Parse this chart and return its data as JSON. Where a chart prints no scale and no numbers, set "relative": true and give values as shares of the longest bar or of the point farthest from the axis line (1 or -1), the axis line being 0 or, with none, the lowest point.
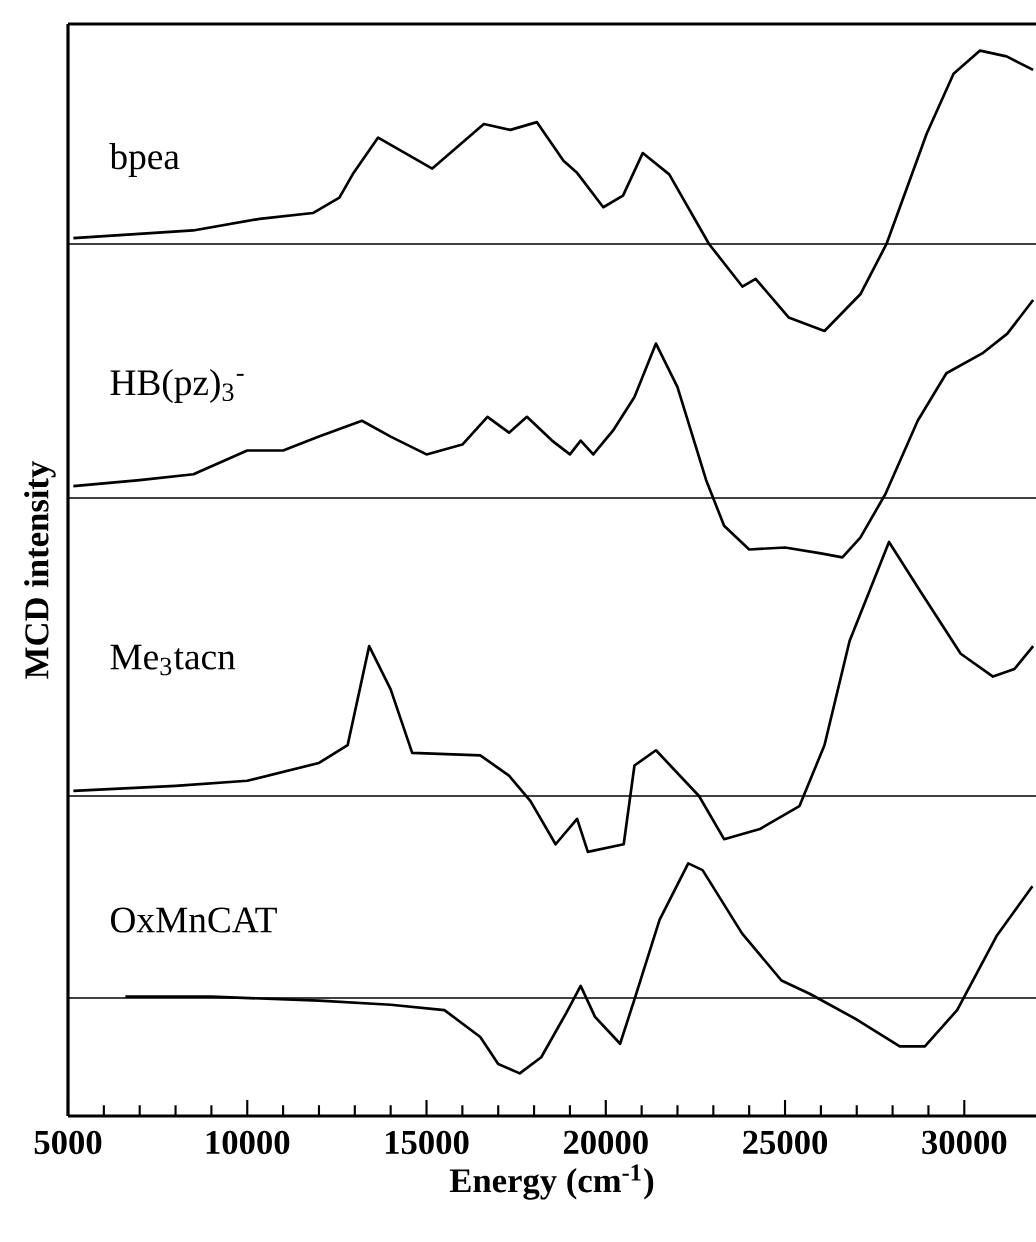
{
  "chart_data": [
    {
      "type": "line",
      "relative": true,
      "xlim": [
        5000,
        32000
      ],
      "tick_labels": false,
      "ref_lines": [
        {
          "axis": "y",
          "value": 0
        }
      ],
      "series": [
        {
          "name": "bpea",
          "color": "#000000",
          "x": [
            5150,
            8490,
            10345,
            11830,
            12570,
            12940,
            13650,
            15160,
            16600,
            17340,
            18080,
            18820,
            19190,
            19930,
            20480,
            21030,
            21770,
            22880,
            23810,
            24180,
            25100,
            26100,
            27100,
            27830,
            28950,
            29700,
            30440,
            31180,
            31920
          ],
          "values": [
            0.03,
            0.07,
            0.13,
            0.16,
            0.24,
            0.36,
            0.55,
            0.39,
            0.62,
            0.59,
            0.63,
            0.43,
            0.37,
            0.19,
            0.25,
            0.47,
            0.36,
            0,
            -0.22,
            -0.18,
            -0.38,
            -0.45,
            -0.26,
            0,
            0.57,
            0.88,
            1,
            0.97,
            0.9
          ]
        }
      ]
    },
    {
      "type": "line",
      "relative": true,
      "xlim": [
        5000,
        32000
      ],
      "tick_labels": false,
      "ref_lines": [
        {
          "axis": "y",
          "value": 0
        }
      ],
      "series": [
        {
          "name": "HB(pz)$_{3}$$^{-}$",
          "color": "#000000",
          "x": [
            5150,
            7000,
            8500,
            10000,
            11000,
            12000,
            13200,
            14000,
            15000,
            16000,
            16700,
            17300,
            17800,
            18500,
            19000,
            19300,
            19650,
            20200,
            20800,
            21400,
            22000,
            22800,
            23300,
            24000,
            25000,
            26000,
            26600,
            27100,
            27800,
            28700,
            29500,
            30500,
            31200,
            31920
          ],
          "values": [
            0.06,
            0.09,
            0.12,
            0.24,
            0.24,
            0.31,
            0.39,
            0.31,
            0.22,
            0.27,
            0.41,
            0.33,
            0.41,
            0.29,
            0.22,
            0.29,
            0.22,
            0.34,
            0.51,
            0.78,
            0.56,
            0.09,
            -0.14,
            -0.26,
            -0.25,
            -0.28,
            -0.3,
            -0.2,
            0.02,
            0.39,
            0.63,
            0.73,
            0.83,
            1
          ]
        }
      ]
    },
    {
      "type": "line",
      "relative": true,
      "xlim": [
        5000,
        32000
      ],
      "tick_labels": false,
      "ref_lines": [
        {
          "axis": "y",
          "value": 0
        }
      ],
      "series": [
        {
          "name": "Me$_{3}$tacn",
          "color": "#000000",
          "x": [
            5150,
            8000,
            10000,
            12000,
            12800,
            13400,
            14000,
            14600,
            16500,
            17300,
            17900,
            18600,
            19200,
            19500,
            20500,
            20800,
            21400,
            22600,
            23300,
            24300,
            25400,
            26100,
            26800,
            27900,
            28800,
            29900,
            30800,
            31400,
            31920
          ],
          "values": [
            0.02,
            0.04,
            0.06,
            0.13,
            0.2,
            0.59,
            0.42,
            0.17,
            0.16,
            0.08,
            -0.02,
            -0.19,
            -0.09,
            -0.22,
            -0.19,
            0.12,
            0.18,
            0,
            -0.17,
            -0.13,
            -0.04,
            0.2,
            0.61,
            1,
            0.8,
            0.56,
            0.47,
            0.5,
            0.59
          ]
        }
      ]
    },
    {
      "type": "line",
      "relative": true,
      "xlim": [
        5000,
        32000
      ],
      "tick_labels": "x",
      "xticks": [
        5000,
        10000,
        15000,
        20000,
        25000,
        30000
      ],
      "xlabel": "Energy (cm$^{-1}$)",
      "ylabel": "MCD intensity",
      "ref_lines": [
        {
          "axis": "y",
          "value": 0
        }
      ],
      "series": [
        {
          "name": "OxMnCAT",
          "color": "#000000",
          "x": [
            6600,
            9000,
            12000,
            14000,
            15500,
            16500,
            17000,
            17600,
            18200,
            18900,
            19300,
            19700,
            20400,
            20800,
            21500,
            22300,
            22700,
            23800,
            24900,
            25700,
            27000,
            28200,
            28900,
            29800,
            30900,
            31900
          ],
          "values": [
            0.01,
            0.01,
            -0.02,
            -0.05,
            -0.09,
            -0.29,
            -0.49,
            -0.56,
            -0.44,
            -0.11,
            0.09,
            -0.14,
            -0.34,
            -0.01,
            0.58,
            1,
            0.95,
            0.48,
            0.13,
            0.03,
            -0.16,
            -0.36,
            -0.36,
            -0.09,
            0.46,
            0.83
          ]
        }
      ]
    }
  ]
}
